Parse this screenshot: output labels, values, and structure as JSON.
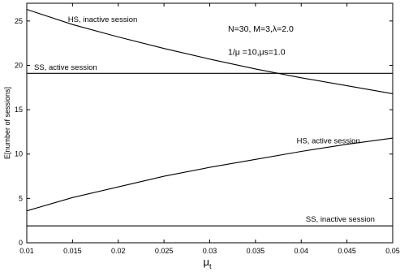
{
  "chart_data": {
    "type": "line",
    "title": "",
    "xlabel": "μt",
    "xlabel_main": "μ",
    "xlabel_sub": "t",
    "ylabel": "E[number of sessions]",
    "xlim": [
      0.01,
      0.05
    ],
    "ylim": [
      0,
      27
    ],
    "x_ticks": [
      "0.01",
      "0.015",
      "0.02",
      "0.025",
      "0.03",
      "0.035",
      "0.04",
      "0.045",
      "0.05"
    ],
    "y_ticks": [
      "0",
      "5",
      "10",
      "15",
      "20",
      "25"
    ],
    "grid": false,
    "annotations": [
      {
        "text": "N=30, M=3,λ=2.0",
        "x": 0.032,
        "y": 23.8
      },
      {
        "text": "1/μ  =10,μs=1.0",
        "x": 0.032,
        "y": 21.2
      }
    ],
    "series": [
      {
        "name": "HS, inactive session",
        "label_x": 0.0145,
        "label_y": 24.9,
        "x": [
          0.01,
          0.015,
          0.02,
          0.025,
          0.03,
          0.035,
          0.04,
          0.045,
          0.05
        ],
        "y": [
          26.3,
          24.6,
          23.2,
          21.9,
          20.7,
          19.6,
          18.6,
          17.7,
          16.8
        ]
      },
      {
        "name": "SS, active session",
        "label_x": 0.0108,
        "label_y": 19.5,
        "x": [
          0.01,
          0.05
        ],
        "y": [
          19.1,
          19.1
        ]
      },
      {
        "name": "HS, active session",
        "label_x": 0.0395,
        "label_y": 11.2,
        "x": [
          0.01,
          0.015,
          0.02,
          0.025,
          0.03,
          0.035,
          0.04,
          0.045,
          0.05
        ],
        "y": [
          3.6,
          5.1,
          6.3,
          7.5,
          8.5,
          9.4,
          10.3,
          11.1,
          11.8
        ]
      },
      {
        "name": "SS, inactive session",
        "label_x": 0.0405,
        "label_y": 2.4,
        "x": [
          0.01,
          0.05
        ],
        "y": [
          1.9,
          1.9
        ]
      }
    ]
  }
}
